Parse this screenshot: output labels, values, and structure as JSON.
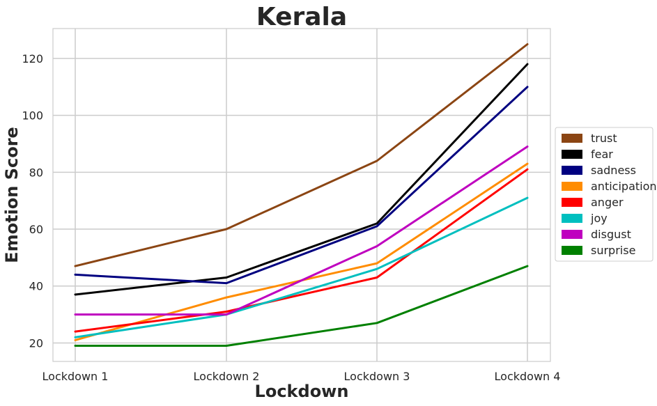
{
  "chart_data": {
    "type": "line",
    "title": "Kerala",
    "xlabel": "Lockdown",
    "ylabel": "Emotion Score",
    "categories": [
      "Lockdown 1",
      "Lockdown 2",
      "Lockdown 3",
      "Lockdown 4"
    ],
    "ylim": [
      13.5,
      130.5
    ],
    "yticks": [
      "20",
      "40",
      "60",
      "80",
      "100",
      "120"
    ],
    "grid": true,
    "legend_position": "center-right",
    "series": [
      {
        "name": "trust",
        "color": "#8B4513",
        "values": [
          47,
          60,
          84,
          125
        ]
      },
      {
        "name": "fear",
        "color": "#000000",
        "values": [
          37,
          43,
          62,
          118
        ]
      },
      {
        "name": "sadness",
        "color": "#000080",
        "values": [
          44,
          41,
          61,
          110
        ]
      },
      {
        "name": "anticipation",
        "color": "#FF8C00",
        "values": [
          21,
          36,
          48,
          83
        ]
      },
      {
        "name": "anger",
        "color": "#FF0000",
        "values": [
          24,
          31,
          43,
          81
        ]
      },
      {
        "name": "joy",
        "color": "#00BFBF",
        "values": [
          22,
          30,
          46,
          71
        ]
      },
      {
        "name": "disgust",
        "color": "#BF00BF",
        "values": [
          30,
          30,
          54,
          89
        ]
      },
      {
        "name": "surprise",
        "color": "#008000",
        "values": [
          19,
          19,
          27,
          47
        ]
      }
    ]
  }
}
